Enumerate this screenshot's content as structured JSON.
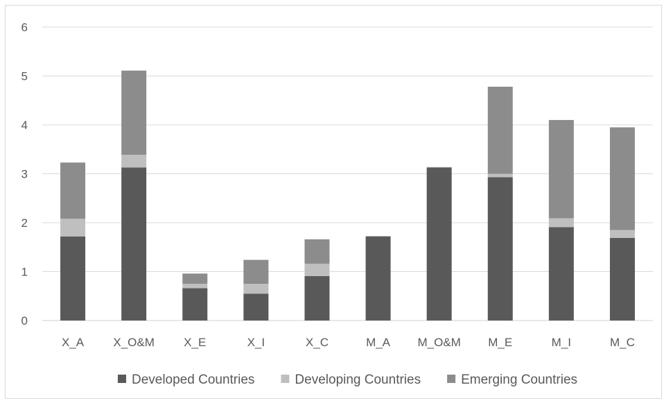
{
  "chart_data": {
    "type": "bar",
    "stacked": true,
    "title": "",
    "xlabel": "",
    "ylabel": "",
    "ylim": [
      0,
      6
    ],
    "yticks": [
      0,
      1,
      2,
      3,
      4,
      5,
      6
    ],
    "grid": true,
    "legend_position": "bottom",
    "categories": [
      "X_A",
      "X_O&M",
      "X_E",
      "X_I",
      "X_C",
      "M_A",
      "M_O&M",
      "M_E",
      "M_I",
      "M_C"
    ],
    "series": [
      {
        "name": "Developed Countries",
        "color": "#595959",
        "values": [
          1.72,
          3.13,
          0.66,
          0.55,
          0.91,
          1.72,
          3.13,
          2.93,
          1.91,
          1.69
        ]
      },
      {
        "name": "Developing Countries",
        "color": "#bfbfbf",
        "values": [
          0.36,
          0.26,
          0.09,
          0.2,
          0.25,
          0.01,
          0.01,
          0.07,
          0.18,
          0.16
        ]
      },
      {
        "name": "Emerging Countries",
        "color": "#8c8c8c",
        "values": [
          1.15,
          1.72,
          0.21,
          0.49,
          0.5,
          0.0,
          0.0,
          1.78,
          2.01,
          2.1
        ]
      }
    ]
  }
}
